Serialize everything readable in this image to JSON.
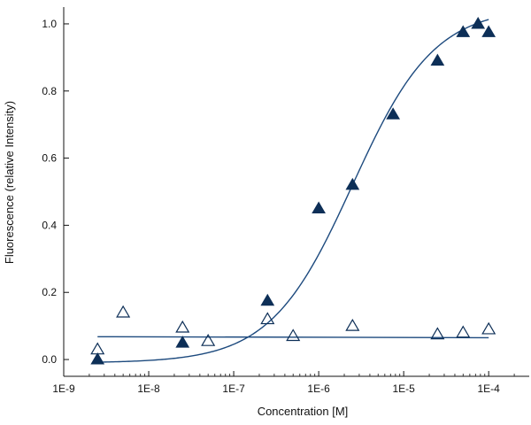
{
  "chart_data": {
    "type": "scatter",
    "title": "",
    "xlabel": "Concentration [M]",
    "ylabel": "Fluorescence (relative Intensity)",
    "x_scale": "log",
    "xlim": [
      1e-09,
      0.0003
    ],
    "ylim": [
      -0.05,
      1.05
    ],
    "x_ticks": [
      1e-09,
      1e-08,
      1e-07,
      1e-06,
      1e-05,
      0.0001
    ],
    "x_tick_labels": [
      "1E-9",
      "1E-8",
      "1E-7",
      "1E-6",
      "1E-5",
      "1E-4"
    ],
    "y_ticks": [
      0.0,
      0.2,
      0.4,
      0.6,
      0.8,
      1.0
    ],
    "y_tick_labels": [
      "0.0",
      "0.2",
      "0.4",
      "0.6",
      "0.8",
      "1.0"
    ],
    "grid": false,
    "legend": "none",
    "series": [
      {
        "marker": "filled-triangle",
        "color": "#0d2f57",
        "x": [
          2.5e-09,
          2.5e-08,
          2.5e-07,
          1e-06,
          2.5e-06,
          7.5e-06,
          2.5e-05,
          5e-05,
          7.5e-05,
          0.0001
        ],
        "y": [
          0.0,
          0.05,
          0.175,
          0.45,
          0.52,
          0.73,
          0.89,
          0.975,
          1.0,
          0.975
        ],
        "fit": {
          "bottom": -0.01,
          "top": 1.05,
          "ec50": 2.5e-06,
          "hill": 0.9,
          "color": "#1d4a7e"
        }
      },
      {
        "marker": "open-triangle",
        "color": "#0d2f57",
        "x": [
          2.5e-09,
          5e-09,
          2.5e-08,
          5e-08,
          2.5e-07,
          5e-07,
          2.5e-06,
          2.5e-05,
          5e-05,
          0.0001
        ],
        "y": [
          0.03,
          0.14,
          0.095,
          0.055,
          0.12,
          0.07,
          0.1,
          0.075,
          0.08,
          0.09
        ],
        "fit": {
          "y_start": 0.068,
          "y_end": 0.065,
          "color": "#1d4a7e"
        }
      }
    ]
  }
}
